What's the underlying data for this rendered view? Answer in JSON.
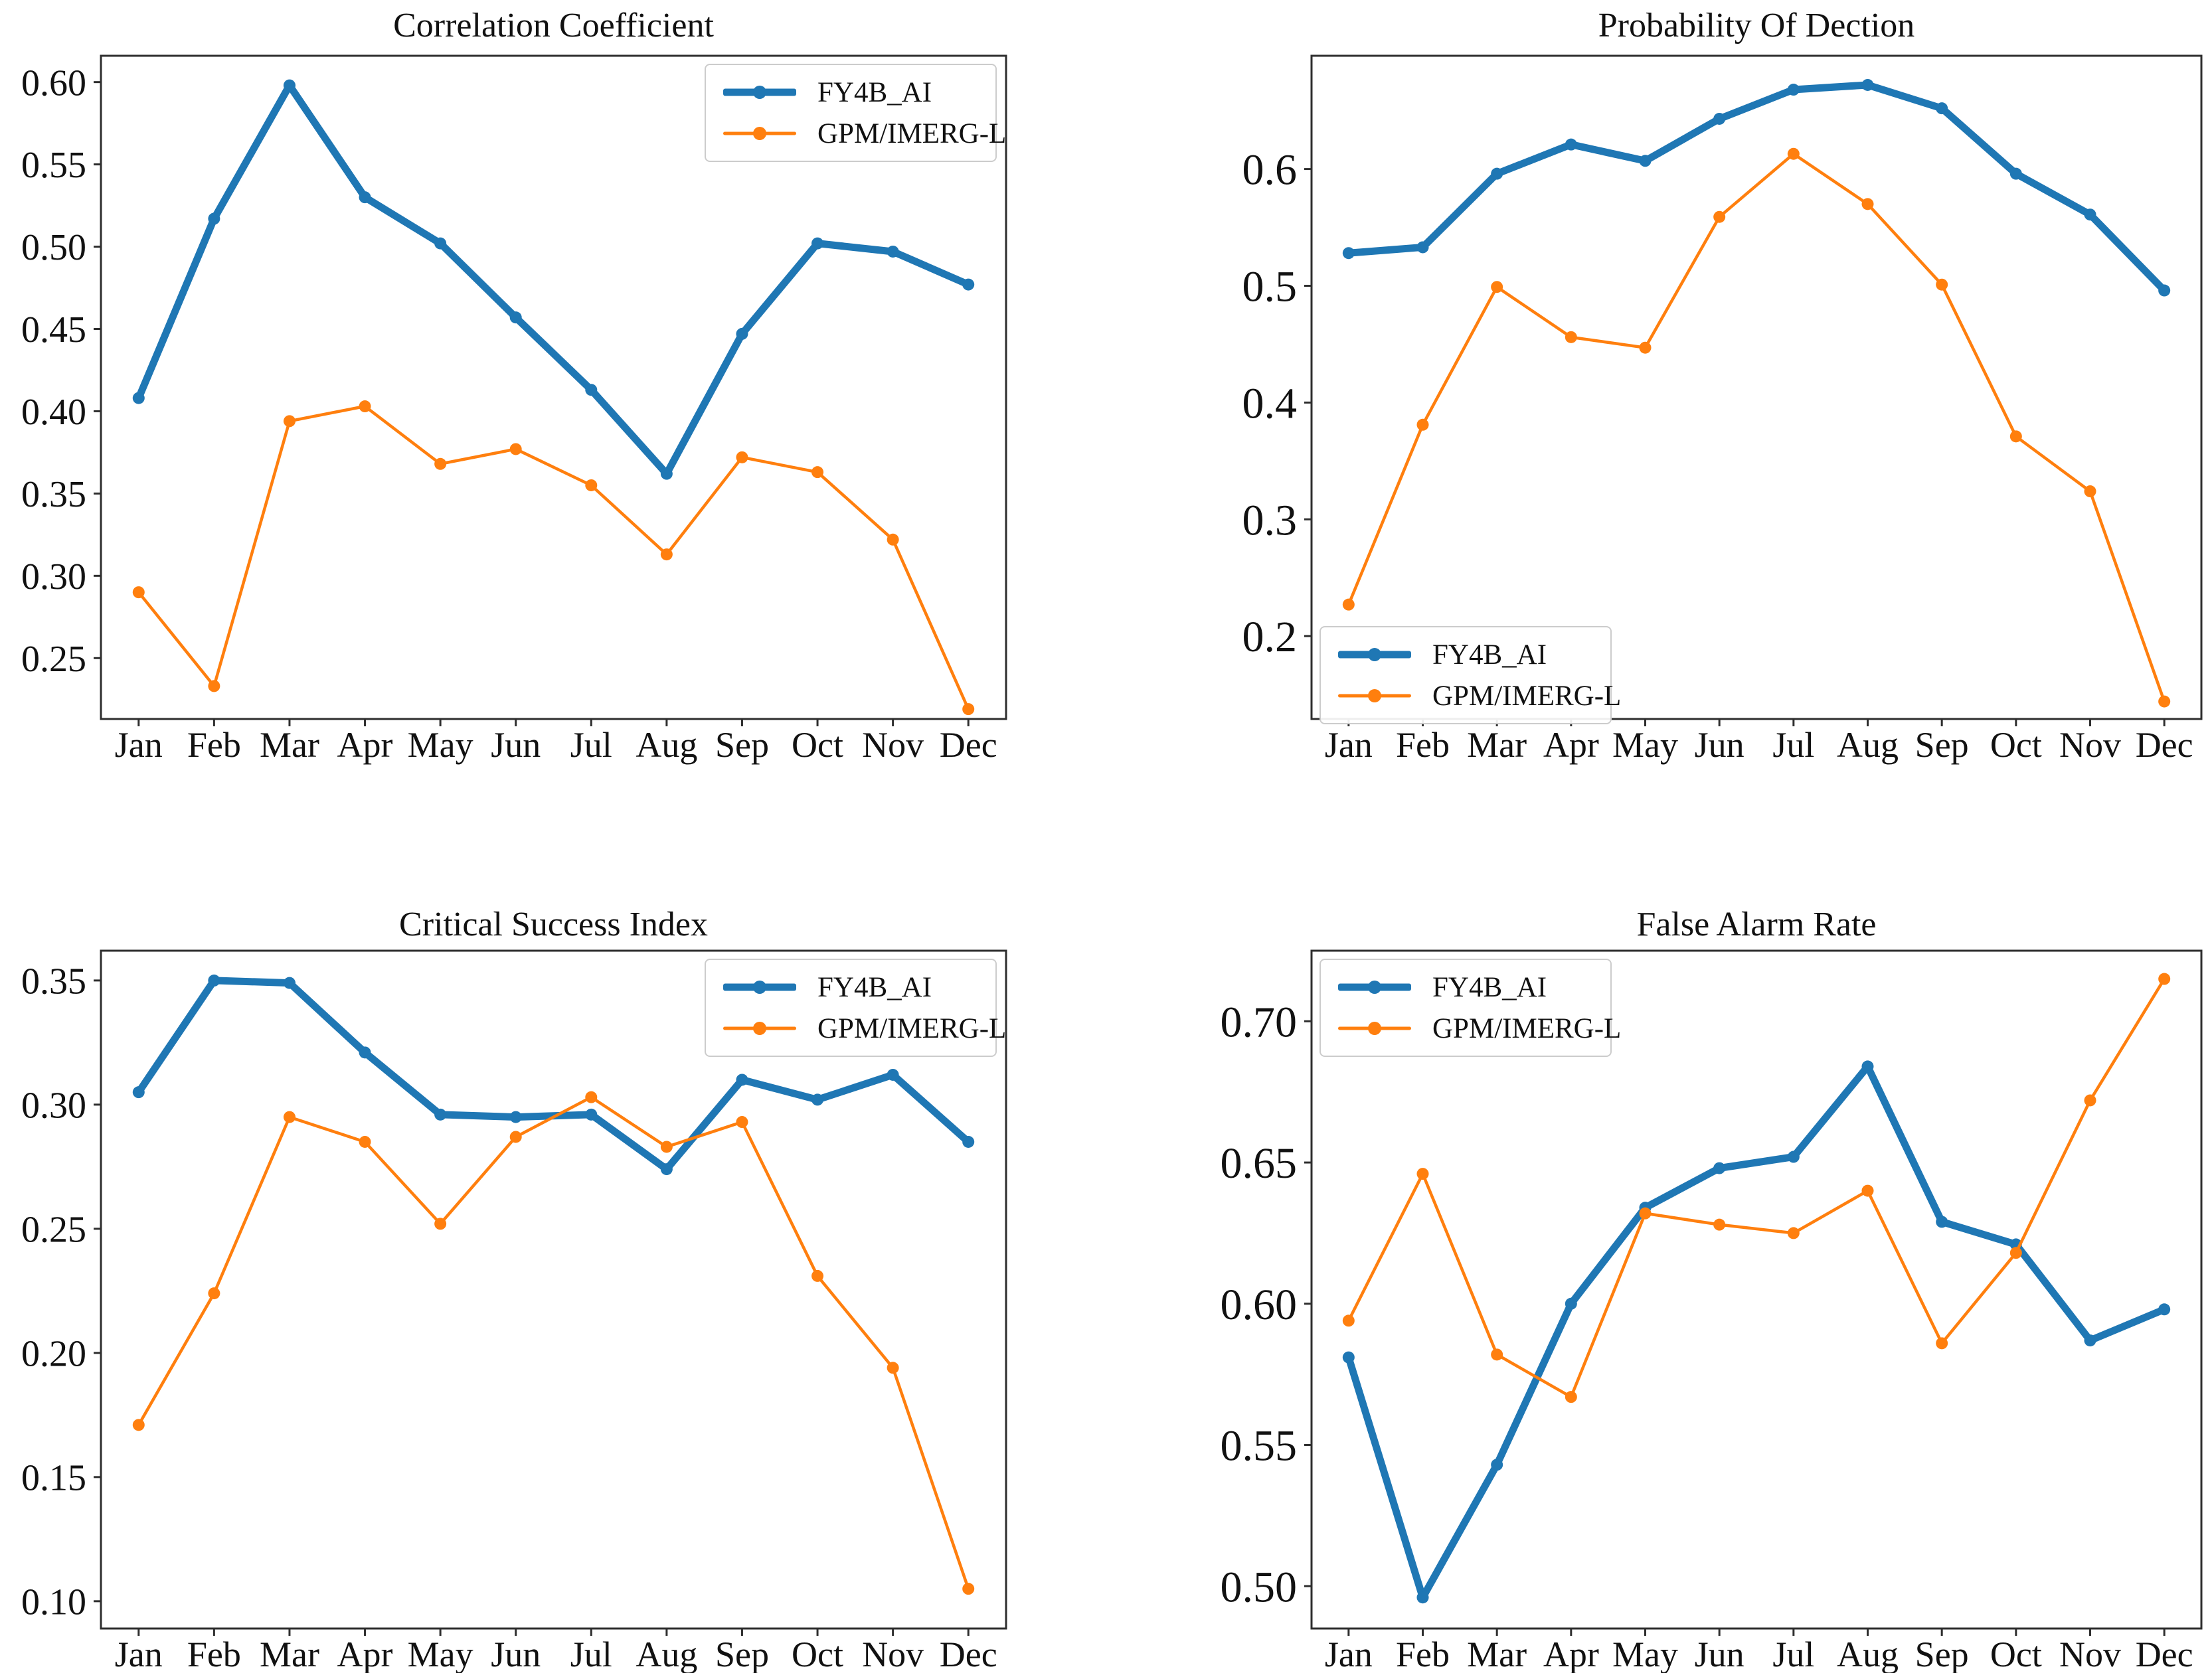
{
  "page": {
    "background": "#ffffff",
    "text_color": "#111111",
    "axis_color": "#2e2e2e"
  },
  "chart_data": [
    {
      "type": "line",
      "title": "Correlation Coefficient",
      "xlabel": "",
      "ylabel": "",
      "grid": false,
      "categories": [
        "Jan",
        "Feb",
        "Mar",
        "Apr",
        "May",
        "Jun",
        "Jul",
        "Aug",
        "Sep",
        "Oct",
        "Nov",
        "Dec"
      ],
      "ytick_labels": [
        "0.25",
        "0.30",
        "0.35",
        "0.40",
        "0.45",
        "0.50",
        "0.55",
        "0.60"
      ],
      "ylim": [
        0.213,
        0.616
      ],
      "legend_position": "upper right",
      "series": [
        {
          "name": "FY4B_AI",
          "color": "#1f77b4",
          "line_width": 11,
          "marker_radius": 9,
          "values": [
            0.408,
            0.517,
            0.598,
            0.53,
            0.502,
            0.457,
            0.413,
            0.362,
            0.447,
            0.502,
            0.497,
            0.477
          ]
        },
        {
          "name": "GPM/IMERG-L",
          "color": "#ff7f0e",
          "line_width": 4.5,
          "marker_radius": 9,
          "values": [
            0.29,
            0.233,
            0.394,
            0.403,
            0.368,
            0.377,
            0.355,
            0.313,
            0.372,
            0.363,
            0.322,
            0.219
          ]
        }
      ]
    },
    {
      "type": "line",
      "title": "Probability Of Dection",
      "xlabel": "",
      "ylabel": "",
      "grid": false,
      "categories": [
        "Jan",
        "Feb",
        "Mar",
        "Apr",
        "May",
        "Jun",
        "Jul",
        "Aug",
        "Sep",
        "Oct",
        "Nov",
        "Dec"
      ],
      "ytick_labels": [
        "0.2",
        "0.3",
        "0.4",
        "0.5",
        "0.6"
      ],
      "ylim": [
        0.129,
        0.697
      ],
      "legend_position": "lower left",
      "series": [
        {
          "name": "FY4B_AI",
          "color": "#1f77b4",
          "line_width": 11,
          "marker_radius": 9,
          "values": [
            0.528,
            0.533,
            0.596,
            0.621,
            0.607,
            0.643,
            0.668,
            0.672,
            0.652,
            0.596,
            0.561,
            0.496
          ]
        },
        {
          "name": "GPM/IMERG-L",
          "color": "#ff7f0e",
          "line_width": 4.5,
          "marker_radius": 9,
          "values": [
            0.227,
            0.381,
            0.499,
            0.456,
            0.447,
            0.559,
            0.613,
            0.57,
            0.501,
            0.371,
            0.324,
            0.144
          ]
        }
      ]
    },
    {
      "type": "line",
      "title": "Critical Success Index",
      "xlabel": "",
      "ylabel": "",
      "grid": false,
      "categories": [
        "Jan",
        "Feb",
        "Mar",
        "Apr",
        "May",
        "Jun",
        "Jul",
        "Aug",
        "Sep",
        "Oct",
        "Nov",
        "Dec"
      ],
      "ytick_labels": [
        "0.10",
        "0.15",
        "0.20",
        "0.25",
        "0.30",
        "0.35"
      ],
      "ylim": [
        0.089,
        0.362
      ],
      "legend_position": "upper right",
      "series": [
        {
          "name": "FY4B_AI",
          "color": "#1f77b4",
          "line_width": 11,
          "marker_radius": 9,
          "values": [
            0.305,
            0.35,
            0.349,
            0.321,
            0.296,
            0.295,
            0.296,
            0.274,
            0.31,
            0.302,
            0.312,
            0.285
          ]
        },
        {
          "name": "GPM/IMERG-L",
          "color": "#ff7f0e",
          "line_width": 4.5,
          "marker_radius": 9,
          "values": [
            0.171,
            0.224,
            0.295,
            0.285,
            0.252,
            0.287,
            0.303,
            0.283,
            0.293,
            0.231,
            0.194,
            0.105
          ]
        }
      ]
    },
    {
      "type": "line",
      "title": "False Alarm Rate",
      "xlabel": "",
      "ylabel": "",
      "grid": false,
      "categories": [
        "Jan",
        "Feb",
        "Mar",
        "Apr",
        "May",
        "Jun",
        "Jul",
        "Aug",
        "Sep",
        "Oct",
        "Nov",
        "Dec"
      ],
      "ytick_labels": [
        "0.50",
        "0.55",
        "0.60",
        "0.65",
        "0.70"
      ],
      "ylim": [
        0.485,
        0.725
      ],
      "legend_position": "upper left",
      "series": [
        {
          "name": "FY4B_AI",
          "color": "#1f77b4",
          "line_width": 11,
          "marker_radius": 9,
          "values": [
            0.581,
            0.496,
            0.543,
            0.6,
            0.634,
            0.648,
            0.652,
            0.684,
            0.629,
            0.621,
            0.587,
            0.598
          ]
        },
        {
          "name": "GPM/IMERG-L",
          "color": "#ff7f0e",
          "line_width": 4.5,
          "marker_radius": 9,
          "values": [
            0.594,
            0.646,
            0.582,
            0.567,
            0.632,
            0.628,
            0.625,
            0.64,
            0.586,
            0.618,
            0.672,
            0.715
          ]
        }
      ]
    }
  ]
}
